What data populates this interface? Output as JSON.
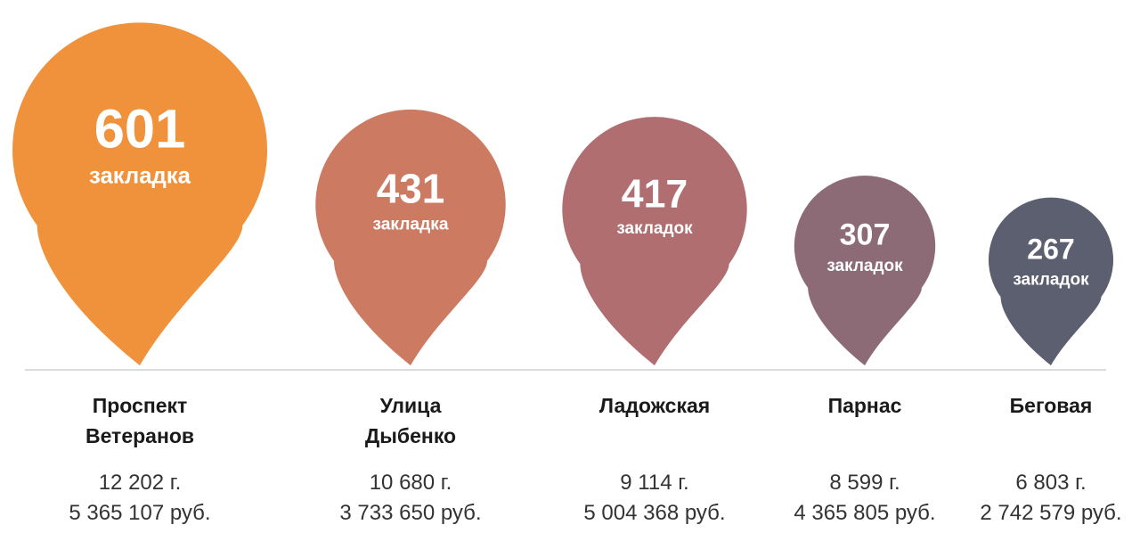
{
  "chart_data": {
    "type": "bar",
    "unit_label_values": [
      "закладка",
      "закладка",
      "закладок",
      "закладок",
      "закладок"
    ],
    "categories": [
      [
        "Проспект",
        "Ветеранов"
      ],
      [
        "Улица",
        "Дыбенко"
      ],
      [
        "Ладожская"
      ],
      [
        "Парнас"
      ],
      [
        "Беговая"
      ]
    ],
    "values": [
      601,
      431,
      417,
      307,
      267
    ],
    "weights": [
      "12 202 г.",
      "10 680 г.",
      "9 114  г.",
      "8 599 г.",
      "6 803 г."
    ],
    "amounts": [
      "5 365 107 руб.",
      "3 733 650 руб.",
      "5 004 368 руб.",
      "4 365 805 руб.",
      "2 742 579 руб."
    ],
    "colors": [
      "#f0913c",
      "#cc7a61",
      "#b06e70",
      "#8c6b76",
      "#5c5f70"
    ]
  }
}
